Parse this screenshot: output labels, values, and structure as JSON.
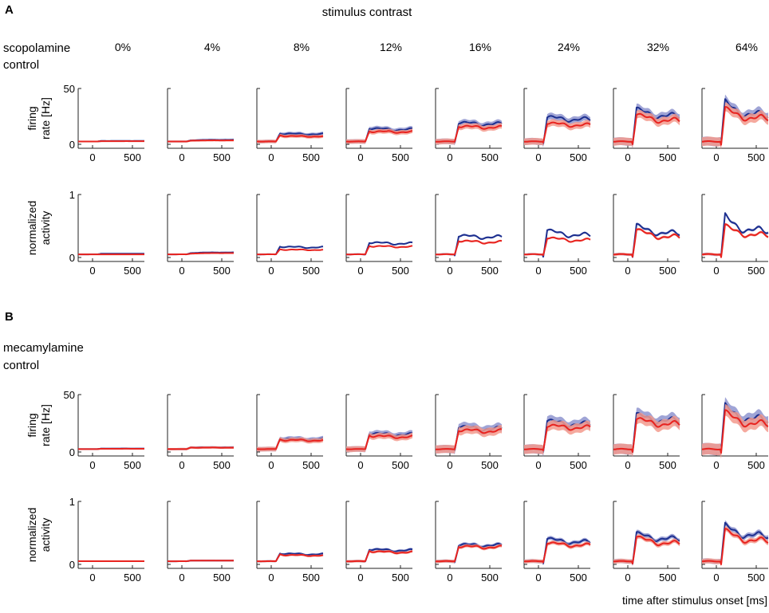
{
  "figure": {
    "title": "stimulus contrast",
    "xlabel": "time after stimulus onset [ms]"
  },
  "colors": {
    "drug_line": "#e8231f",
    "drug_band": "#f39a8d",
    "control_line": "#1c2f8f",
    "control_band": "#8e94cf",
    "axis": "#222222"
  },
  "chart_data": [
    {
      "type": "line",
      "panel": "A",
      "legend": [
        {
          "name": "scopolamine",
          "color": "#e8231f"
        },
        {
          "name": "control",
          "color": "#1c2f8f"
        }
      ],
      "columns": [
        "0%",
        "4%",
        "8%",
        "12%",
        "16%",
        "24%",
        "32%",
        "64%"
      ],
      "x_range": [
        -180,
        650
      ],
      "x_ticks": [
        0,
        500
      ],
      "rows": [
        {
          "ylabel": [
            "firing",
            "rate [Hz]"
          ],
          "y_range": [
            0,
            50
          ],
          "y_ticks": [
            0,
            50
          ],
          "plateau": {
            "control": [
              3,
              3.5,
              10,
              15,
              20,
              25,
              32,
              38
            ],
            "drug": [
              2.8,
              3.2,
              8,
              12,
              17,
              20,
              28,
              33
            ]
          },
          "sustained": {
            "control": [
              3,
              4,
              9,
              13,
              18,
              22,
              25,
              26
            ],
            "drug": [
              2.8,
              3.5,
              7,
              11,
              15,
              17,
              21,
              23
            ]
          },
          "band_halfwidth": [
            0.5,
            0.8,
            1.5,
            2.0,
            2.5,
            3.0,
            3.5,
            4.0
          ]
        },
        {
          "ylabel": [
            "normalized",
            "activity"
          ],
          "y_range": [
            0,
            1
          ],
          "y_ticks": [
            0,
            1
          ],
          "plateau": {
            "control": [
              0.06,
              0.07,
              0.18,
              0.25,
              0.36,
              0.45,
              0.52,
              0.66
            ],
            "drug": [
              0.05,
              0.06,
              0.13,
              0.19,
              0.28,
              0.33,
              0.47,
              0.52
            ]
          },
          "sustained": {
            "control": [
              0.06,
              0.08,
              0.16,
              0.22,
              0.32,
              0.35,
              0.38,
              0.42
            ],
            "drug": [
              0.05,
              0.07,
              0.12,
              0.17,
              0.24,
              0.27,
              0.32,
              0.35
            ]
          },
          "band_halfwidth": [
            0.008,
            0.01,
            0.01,
            0.012,
            0.015,
            0.015,
            0.02,
            0.02
          ]
        }
      ]
    },
    {
      "type": "line",
      "panel": "B",
      "legend": [
        {
          "name": "mecamylamine",
          "color": "#e8231f"
        },
        {
          "name": "control",
          "color": "#1c2f8f"
        }
      ],
      "columns": [
        "0%",
        "4%",
        "8%",
        "12%",
        "16%",
        "24%",
        "32%",
        "64%"
      ],
      "x_range": [
        -180,
        650
      ],
      "x_ticks": [
        0,
        500
      ],
      "rows": [
        {
          "ylabel": [
            "firing",
            "rate [Hz]"
          ],
          "y_range": [
            0,
            50
          ],
          "y_ticks": [
            0,
            50
          ],
          "plateau": {
            "control": [
              3,
              4,
              12,
              17,
              23,
              28,
              33,
              40
            ],
            "drug": [
              2.8,
              3.8,
              11,
              15,
              20,
              24,
              30,
              36
            ]
          },
          "sustained": {
            "control": [
              3,
              4,
              11,
              15,
              20,
              24,
              27,
              28
            ],
            "drug": [
              2.8,
              3.8,
              10,
              13,
              18,
              21,
              24,
              24
            ]
          },
          "band_halfwidth": [
            0.6,
            1.0,
            2.0,
            2.5,
            3.5,
            4.0,
            4.5,
            5.0
          ]
        },
        {
          "ylabel": [
            "normalized",
            "activity"
          ],
          "y_range": [
            0,
            1
          ],
          "y_ticks": [
            0,
            1
          ],
          "plateau": {
            "control": [
              0.05,
              0.06,
              0.18,
              0.25,
              0.32,
              0.42,
              0.5,
              0.62
            ],
            "drug": [
              0.05,
              0.06,
              0.16,
              0.22,
              0.3,
              0.36,
              0.46,
              0.56
            ]
          },
          "sustained": {
            "control": [
              0.05,
              0.06,
              0.16,
              0.22,
              0.3,
              0.35,
              0.4,
              0.45
            ],
            "drug": [
              0.05,
              0.06,
              0.14,
              0.19,
              0.27,
              0.3,
              0.33,
              0.37
            ]
          },
          "band_halfwidth": [
            0.01,
            0.01,
            0.015,
            0.02,
            0.025,
            0.03,
            0.035,
            0.04
          ]
        }
      ]
    }
  ]
}
